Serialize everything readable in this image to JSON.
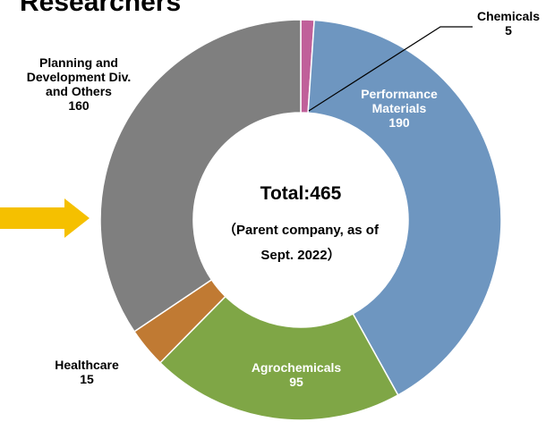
{
  "chart_data": {
    "type": "donut",
    "title": "Researchers",
    "center_title": "Total:465",
    "center_subtitle": "（Parent company, as of Sept. 2022）",
    "categories": [
      "Chemicals",
      "Performance Materials",
      "Agrochemicals",
      "Healthcare",
      "Planning and Development Div. and Others"
    ],
    "values": [
      5,
      190,
      95,
      15,
      160
    ],
    "colors": [
      "#c0609a",
      "#6e96c0",
      "#7fa646",
      "#c07a33",
      "#7f7f7f"
    ]
  }
}
